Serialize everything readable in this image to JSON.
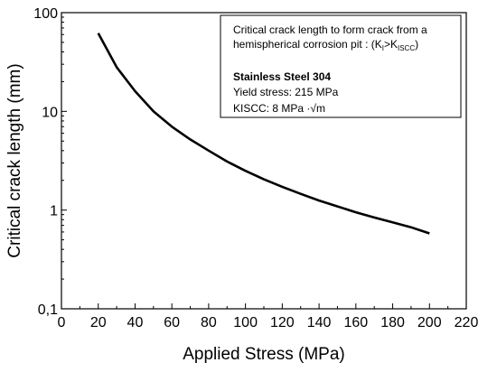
{
  "chart_data": {
    "type": "line",
    "xlabel": "Applied Stress (MPa)",
    "ylabel": "Critical crack length (mm)",
    "xlim": [
      0,
      220
    ],
    "ylim": [
      0.1,
      100
    ],
    "yscale": "log",
    "xticks": [
      0,
      20,
      40,
      60,
      80,
      100,
      120,
      140,
      160,
      180,
      200,
      220
    ],
    "xtick_labels": [
      "0",
      "20",
      "40",
      "60",
      "80",
      "100",
      "120",
      "140",
      "160",
      "180",
      "200",
      "220"
    ],
    "yticks": [
      0.1,
      1,
      10,
      100
    ],
    "ytick_labels": [
      "0,1",
      "1",
      "10",
      "100"
    ],
    "grid": false,
    "series": [
      {
        "color": "#000000",
        "x": [
          20,
          30,
          40,
          50,
          60,
          70,
          80,
          90,
          100,
          110,
          120,
          130,
          140,
          150,
          160,
          170,
          180,
          190,
          200
        ],
        "values": [
          62,
          28,
          16,
          10,
          7.0,
          5.2,
          4.0,
          3.1,
          2.5,
          2.05,
          1.72,
          1.46,
          1.25,
          1.09,
          0.95,
          0.84,
          0.75,
          0.67,
          0.58
        ]
      }
    ],
    "annotation": {
      "line1": "Critical crack length to form crack from a",
      "line2_pre": "hemispherical corrosion pit : (K",
      "line2_sub1": "I",
      "line2_mid": ">K",
      "line2_sub2": "ISCC",
      "line2_post": ")",
      "material": "Stainless Steel 304",
      "yield": "Yield stress: 215 MPa",
      "kiscc": "KISCC: 8 MPa ·√m"
    }
  }
}
